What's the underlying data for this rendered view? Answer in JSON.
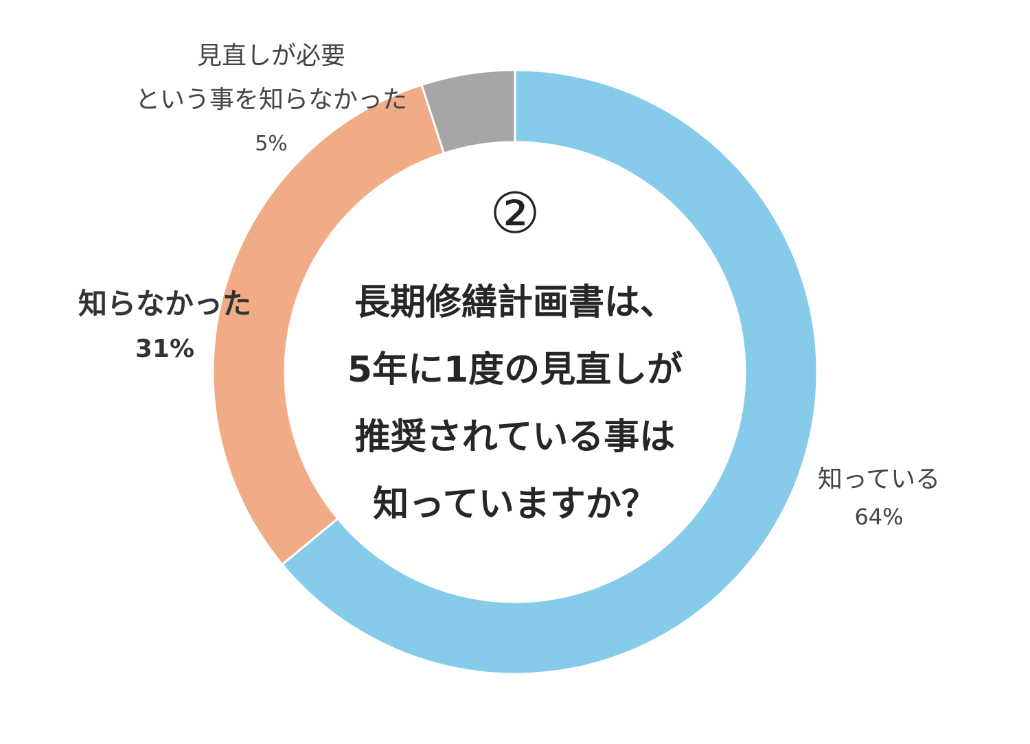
{
  "chart_data": {
    "type": "pie",
    "variant": "donut",
    "slices": [
      {
        "label": "知っている",
        "value": 64,
        "display": "64%",
        "color": "#87CBEB"
      },
      {
        "label": "知らなかった",
        "value": 31,
        "display": "31%",
        "color": "#F1AB86"
      },
      {
        "label": "見直しが必要という事を知らなかった",
        "label_lines": [
          "見直しが必要",
          "という事を知らなかった"
        ],
        "value": 5,
        "display": "5%",
        "color": "#A6A6A6"
      }
    ]
  },
  "center": {
    "number": "②",
    "question_lines": [
      "長期修繕計画書は、",
      "5年に1度の見直しが",
      "推奨されている事は",
      "知っていますか？"
    ]
  }
}
